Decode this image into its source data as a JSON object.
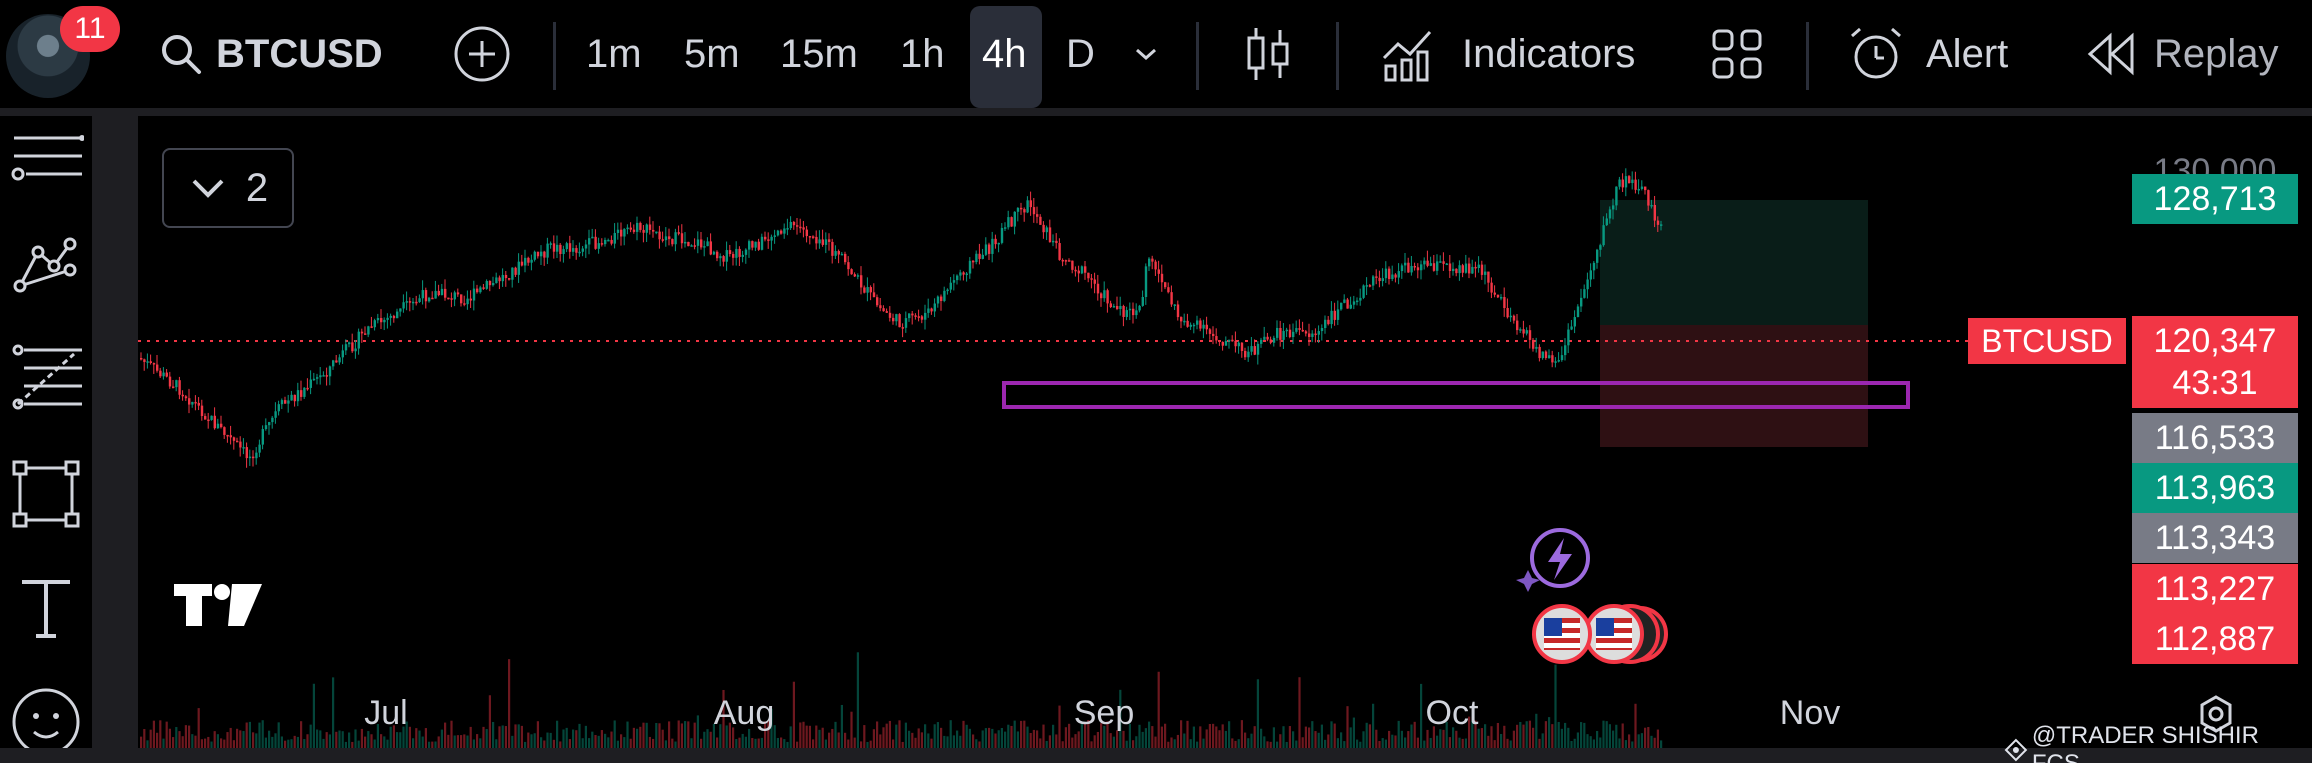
{
  "header": {
    "notification_count": "11",
    "symbol": "BTCUSD",
    "timeframes": [
      "1m",
      "5m",
      "15m",
      "1h",
      "4h",
      "D"
    ],
    "active_timeframe": "4h",
    "indicators_label": "Indicators",
    "alert_label": "Alert",
    "replay_label": "Replay"
  },
  "left_toolbar": {
    "tools": [
      "lines-icon",
      "pattern-icon",
      "fib-icon",
      "rectangle-icon",
      "text-icon",
      "emoji-icon"
    ]
  },
  "chart": {
    "legend_count": "2",
    "symbol_label": "BTCUSD",
    "price_scale": {
      "top_tick": "130,000",
      "labels": [
        {
          "value": "128,713",
          "color": "#089981"
        },
        {
          "value": "120,347",
          "color": "#f23645"
        },
        {
          "value": "43:31",
          "color": "#f23645"
        },
        {
          "value": "116,533",
          "color": "#787b86"
        },
        {
          "value": "113,963",
          "color": "#089981"
        },
        {
          "value": "113,343",
          "color": "#787b86"
        },
        {
          "value": "113,227",
          "color": "#f23645"
        },
        {
          "value": "112,887",
          "color": "#f23645"
        }
      ]
    },
    "x_labels": [
      "Jul",
      "Aug",
      "Sep",
      "Oct",
      "Nov"
    ],
    "watermark": "@TRADER SHISHIR FCS",
    "colors": {
      "up": "#089981",
      "down": "#f23645",
      "zone": "#9c27b0",
      "background": "#000000"
    }
  }
}
